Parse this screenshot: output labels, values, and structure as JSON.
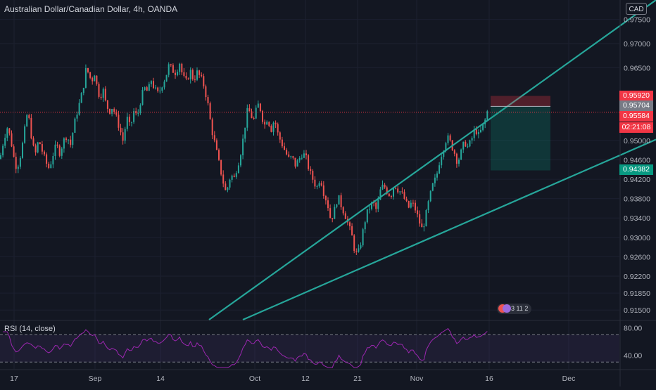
{
  "header": {
    "title": "Australian Dollar/Canadian Dollar, 4h, OANDA",
    "currency": "CAD"
  },
  "rsi": {
    "label": "RSI (14, close)"
  },
  "badge": {
    "text": "3 11 2"
  },
  "price_tags": {
    "stop": "0.95920",
    "entry": "0.95704",
    "last": "0.95584",
    "countdown": "02:21:08",
    "target": "0.94382"
  },
  "colors": {
    "background": "#131722",
    "up": "#26a69a",
    "down": "#ef5350",
    "trendline": "#26a69a",
    "rsi": "#9c27b0",
    "last_price": "#f23645"
  },
  "chart_data": {
    "type": "candlestick",
    "symbol": "Australian Dollar/Canadian Dollar",
    "interval": "4h",
    "source": "OANDA",
    "y_axis_ticks": [
      "0.97500",
      "0.97000",
      "0.96500",
      "0.95000",
      "0.94600",
      "0.94200",
      "0.93800",
      "0.93400",
      "0.93000",
      "0.92600",
      "0.92200",
      "0.91850",
      "0.91500"
    ],
    "ylim": [
      0.913,
      0.979
    ],
    "x_axis_ticks": [
      "17",
      "Sep",
      "14",
      "Oct",
      "12",
      "21",
      "Nov",
      "16",
      "Dec"
    ],
    "close_path": [
      [
        0,
        0.9462
      ],
      [
        5,
        0.95
      ],
      [
        10,
        0.9528
      ],
      [
        15,
        0.9505
      ],
      [
        20,
        0.9462
      ],
      [
        24,
        0.9442
      ],
      [
        30,
        0.9475
      ],
      [
        34,
        0.951
      ],
      [
        38,
        0.9552
      ],
      [
        42,
        0.954
      ],
      [
        46,
        0.9492
      ],
      [
        50,
        0.947
      ],
      [
        55,
        0.9502
      ],
      [
        60,
        0.9478
      ],
      [
        65,
        0.9455
      ],
      [
        70,
        0.9442
      ],
      [
        75,
        0.947
      ],
      [
        80,
        0.949
      ],
      [
        85,
        0.9475
      ],
      [
        90,
        0.9498
      ],
      [
        95,
        0.9512
      ],
      [
        100,
        0.949
      ],
      [
        105,
        0.953
      ],
      [
        110,
        0.9562
      ],
      [
        114,
        0.9582
      ],
      [
        118,
        0.9608
      ],
      [
        122,
        0.9645
      ],
      [
        126,
        0.964
      ],
      [
        130,
        0.962
      ],
      [
        134,
        0.9642
      ],
      [
        138,
        0.961
      ],
      [
        142,
        0.9588
      ],
      [
        146,
        0.9608
      ],
      [
        150,
        0.9578
      ],
      [
        155,
        0.956
      ],
      [
        160,
        0.957
      ],
      [
        165,
        0.9548
      ],
      [
        170,
        0.9525
      ],
      [
        175,
        0.9498
      ],
      [
        180,
        0.9548
      ],
      [
        185,
        0.9525
      ],
      [
        190,
        0.956
      ],
      [
        195,
        0.9548
      ],
      [
        200,
        0.9585
      ],
      [
        205,
        0.9608
      ],
      [
        210,
        0.96
      ],
      [
        215,
        0.9625
      ],
      [
        220,
        0.9605
      ],
      [
        225,
        0.9595
      ],
      [
        230,
        0.9615
      ],
      [
        235,
        0.963
      ],
      [
        240,
        0.9655
      ],
      [
        245,
        0.9645
      ],
      [
        250,
        0.964
      ],
      [
        255,
        0.9662
      ],
      [
        260,
        0.963
      ],
      [
        265,
        0.962
      ],
      [
        270,
        0.9645
      ],
      [
        275,
        0.9625
      ],
      [
        280,
        0.964
      ],
      [
        285,
        0.963
      ],
      [
        290,
        0.9612
      ],
      [
        295,
        0.9578
      ],
      [
        300,
        0.9528
      ],
      [
        305,
        0.9495
      ],
      [
        310,
        0.946
      ],
      [
        315,
        0.9428
      ],
      [
        320,
        0.9395
      ],
      [
        324,
        0.9405
      ],
      [
        328,
        0.9432
      ],
      [
        332,
        0.9418
      ],
      [
        336,
        0.9442
      ],
      [
        340,
        0.9462
      ],
      [
        344,
        0.949
      ],
      [
        348,
        0.953
      ],
      [
        352,
        0.9565
      ],
      [
        356,
        0.9555
      ],
      [
        360,
        0.954
      ],
      [
        364,
        0.9562
      ],
      [
        368,
        0.9578
      ],
      [
        372,
        0.955
      ],
      [
        376,
        0.9532
      ],
      [
        380,
        0.9548
      ],
      [
        385,
        0.9522
      ],
      [
        390,
        0.9545
      ],
      [
        395,
        0.9512
      ],
      [
        400,
        0.9495
      ],
      [
        405,
        0.9478
      ],
      [
        410,
        0.9462
      ],
      [
        415,
        0.9465
      ],
      [
        420,
        0.9448
      ],
      [
        425,
        0.9462
      ],
      [
        430,
        0.9475
      ],
      [
        435,
        0.9462
      ],
      [
        440,
        0.9435
      ],
      [
        445,
        0.9418
      ],
      [
        450,
        0.9402
      ],
      [
        455,
        0.9425
      ],
      [
        460,
        0.9392
      ],
      [
        465,
        0.9372
      ],
      [
        470,
        0.9335
      ],
      [
        475,
        0.9355
      ],
      [
        480,
        0.9385
      ],
      [
        485,
        0.9365
      ],
      [
        490,
        0.9348
      ],
      [
        495,
        0.9325
      ],
      [
        500,
        0.9302
      ],
      [
        504,
        0.9272
      ],
      [
        508,
        0.9262
      ],
      [
        512,
        0.9285
      ],
      [
        516,
        0.9315
      ],
      [
        520,
        0.9345
      ],
      [
        525,
        0.9362
      ],
      [
        530,
        0.9372
      ],
      [
        535,
        0.9355
      ],
      [
        540,
        0.9395
      ],
      [
        545,
        0.9408
      ],
      [
        550,
        0.9395
      ],
      [
        555,
        0.9385
      ],
      [
        560,
        0.941
      ],
      [
        565,
        0.94
      ],
      [
        570,
        0.9392
      ],
      [
        575,
        0.9378
      ],
      [
        580,
        0.936
      ],
      [
        585,
        0.9372
      ],
      [
        590,
        0.9358
      ],
      [
        595,
        0.9335
      ],
      [
        600,
        0.9315
      ],
      [
        605,
        0.9345
      ],
      [
        610,
        0.938
      ],
      [
        615,
        0.9408
      ],
      [
        620,
        0.9425
      ],
      [
        625,
        0.9462
      ],
      [
        630,
        0.9485
      ],
      [
        635,
        0.9508
      ],
      [
        640,
        0.9495
      ],
      [
        645,
        0.9478
      ],
      [
        650,
        0.9455
      ],
      [
        655,
        0.9475
      ],
      [
        660,
        0.9498
      ],
      [
        665,
        0.9485
      ],
      [
        670,
        0.9502
      ],
      [
        675,
        0.9525
      ],
      [
        680,
        0.951
      ],
      [
        685,
        0.9525
      ],
      [
        690,
        0.9545
      ],
      [
        694,
        0.957
      ]
    ],
    "trendlines": [
      {
        "from": [
          297,
          0.913
        ],
        "to": [
          932,
          0.979
        ]
      },
      {
        "from": [
          345,
          0.913
        ],
        "to": [
          932,
          0.9502
        ]
      }
    ],
    "position": {
      "type": "short",
      "entry": 0.95704,
      "stop": 0.9592,
      "target": 0.94382,
      "x_start": 697,
      "x_end": 782
    },
    "last_price": 0.95584,
    "rsi": {
      "ylim": [
        20,
        90
      ],
      "levels": [
        70,
        30
      ],
      "ticks": [
        "80.00",
        "40.00"
      ]
    }
  }
}
